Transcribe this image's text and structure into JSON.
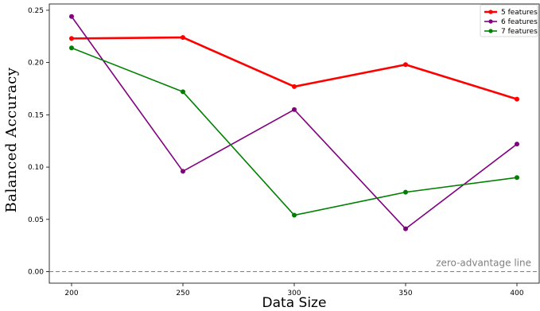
{
  "chart_data": {
    "type": "line",
    "x": [
      200,
      250,
      300,
      350,
      400
    ],
    "xlabel": "Data Size",
    "ylabel": "Balanced Accuracy",
    "xticks": [
      200,
      250,
      300,
      350,
      400
    ],
    "yticks": [
      "0.00",
      "0.05",
      "0.10",
      "0.15",
      "0.20",
      "0.25"
    ],
    "xlim": [
      190,
      410
    ],
    "ylim": [
      -0.011,
      0.256
    ],
    "grid": false,
    "legend_position": "top-right",
    "series": [
      {
        "name": "5 features",
        "color": "#ff0000",
        "values": [
          0.223,
          0.224,
          0.177,
          0.198,
          0.165
        ]
      },
      {
        "name": "6 features",
        "color": "#800080",
        "values": [
          0.244,
          0.096,
          0.155,
          0.041,
          0.122
        ]
      },
      {
        "name": "7 features",
        "color": "#008000",
        "values": [
          0.214,
          0.172,
          0.054,
          0.076,
          0.09
        ]
      }
    ],
    "reference_line": {
      "y": 0.0,
      "label": "zero-advantage line",
      "color": "#808080",
      "style": "dashed"
    }
  }
}
